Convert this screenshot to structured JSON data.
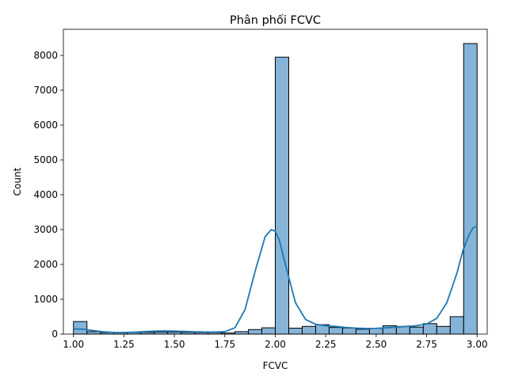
{
  "chart_data": {
    "type": "bar",
    "title": "Phân phối FCVC",
    "xlabel": "FCVC",
    "ylabel": "Count",
    "xlim": [
      0.95,
      3.05
    ],
    "ylim": [
      0,
      8750
    ],
    "xticks": [
      1.0,
      1.25,
      1.5,
      1.75,
      2.0,
      2.25,
      2.5,
      2.75,
      3.0
    ],
    "xtick_labels": [
      "1.00",
      "1.25",
      "1.50",
      "1.75",
      "2.00",
      "2.25",
      "2.50",
      "2.75",
      "3.00"
    ],
    "yticks": [
      0,
      1000,
      2000,
      3000,
      4000,
      5000,
      6000,
      7000,
      8000
    ],
    "ytick_labels": [
      "0",
      "1000",
      "2000",
      "3000",
      "4000",
      "5000",
      "6000",
      "7000",
      "8000"
    ],
    "grid": false,
    "bin_edges": [
      1.0,
      1.0667,
      1.1333,
      1.2,
      1.2667,
      1.3333,
      1.4,
      1.4667,
      1.5333,
      1.6,
      1.6667,
      1.7333,
      1.8,
      1.8667,
      1.9333,
      2.0,
      2.0667,
      2.1333,
      2.2,
      2.2667,
      2.3333,
      2.4,
      2.4667,
      2.5333,
      2.6,
      2.6667,
      2.7333,
      2.8,
      2.8667,
      2.9333,
      3.0
    ],
    "counts": [
      360,
      70,
      45,
      40,
      45,
      50,
      60,
      60,
      50,
      45,
      45,
      30,
      70,
      130,
      180,
      7950,
      170,
      220,
      270,
      190,
      175,
      140,
      160,
      240,
      220,
      200,
      300,
      220,
      500,
      8340
    ],
    "bar_color": "#86b4d8",
    "edge_color": "#000000",
    "kde": {
      "color": "#1f77b4",
      "x": [
        1.0,
        1.05,
        1.1,
        1.15,
        1.2,
        1.25,
        1.3,
        1.35,
        1.4,
        1.45,
        1.5,
        1.55,
        1.6,
        1.65,
        1.7,
        1.75,
        1.8,
        1.85,
        1.9,
        1.95,
        1.98,
        2.0,
        2.02,
        2.05,
        2.1,
        2.15,
        2.2,
        2.25,
        2.3,
        2.35,
        2.4,
        2.45,
        2.5,
        2.55,
        2.6,
        2.65,
        2.7,
        2.75,
        2.8,
        2.85,
        2.9,
        2.93,
        2.96,
        2.98,
        3.0
      ],
      "y": [
        150,
        140,
        100,
        65,
        48,
        45,
        55,
        70,
        85,
        90,
        85,
        75,
        65,
        60,
        60,
        70,
        180,
        700,
        1800,
        2800,
        3000,
        2950,
        2700,
        2000,
        900,
        420,
        280,
        240,
        220,
        190,
        170,
        160,
        165,
        180,
        200,
        220,
        240,
        290,
        450,
        900,
        1750,
        2400,
        2850,
        3050,
        3100
      ]
    }
  }
}
